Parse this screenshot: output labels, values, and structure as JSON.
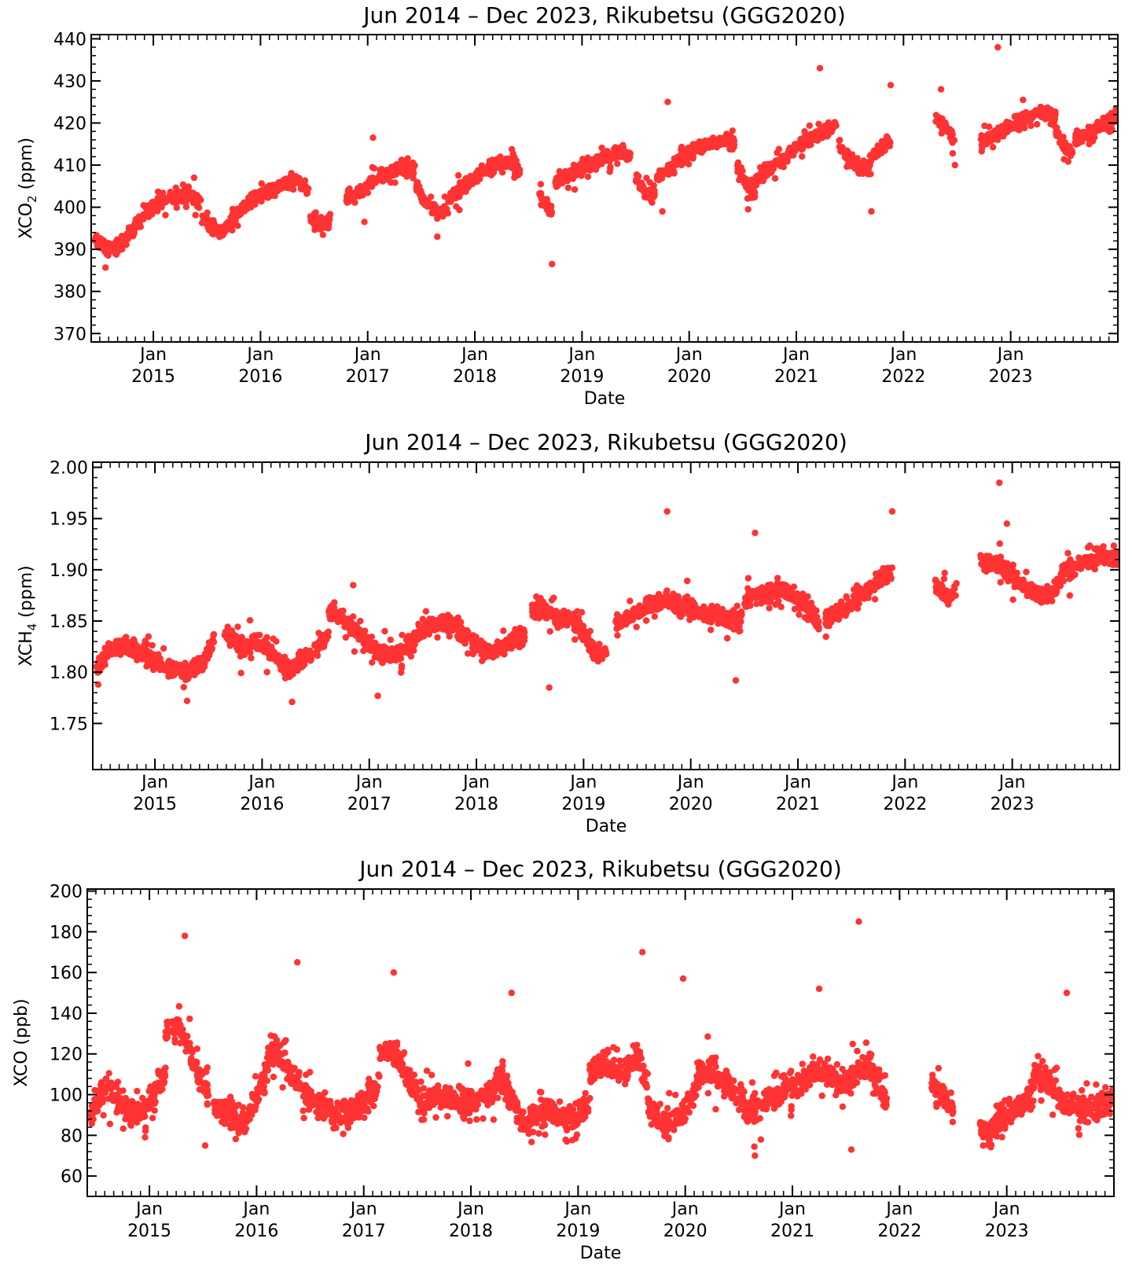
{
  "colors": {
    "points": "#ff3333",
    "axes": "#000000"
  },
  "chart_data": [
    {
      "type": "scatter",
      "title": "Jun 2014 – Dec 2023, Rikubetsu    (GGG2020)",
      "ylabel_main": "XCO",
      "ylabel_sub": "2",
      "ylabel_unit": " (ppm)",
      "xlabel": "Date",
      "xlim": [
        2014.42,
        2024.0
      ],
      "ylim": [
        368,
        441
      ],
      "yticks": [
        370,
        380,
        390,
        400,
        410,
        420,
        430,
        440
      ],
      "xtick_month": "Jan",
      "xticks": [
        2015,
        2016,
        2017,
        2018,
        2019,
        2020,
        2021,
        2022,
        2023
      ],
      "scatter": 2.2,
      "outliers": [
        [
          2015.38,
          407.0
        ],
        [
          2016.97,
          396.5
        ],
        [
          2017.65,
          393.0
        ],
        [
          2018.72,
          386.5
        ],
        [
          2019.8,
          425.0
        ],
        [
          2020.55,
          399.5
        ],
        [
          2021.22,
          433.0
        ],
        [
          2021.88,
          429.0
        ],
        [
          2021.7,
          399.0
        ],
        [
          2022.35,
          428.0
        ],
        [
          2022.88,
          438.0
        ],
        [
          2022.48,
          410.0
        ],
        [
          2019.75,
          399.0
        ],
        [
          2017.05,
          416.5
        ]
      ],
      "segments": [
        {
          "x": [
            2014.45,
            2014.55,
            2014.65,
            2014.75
          ],
          "y": [
            393,
            390,
            390.5,
            392
          ]
        },
        {
          "x": [
            2014.75,
            2014.9,
            2015.05,
            2015.2,
            2015.35,
            2015.45
          ],
          "y": [
            393,
            398,
            401,
            402.5,
            403,
            401
          ]
        },
        {
          "x": [
            2015.45,
            2015.55,
            2015.65
          ],
          "y": [
            398,
            395,
            394
          ]
        },
        {
          "x": [
            2015.65,
            2015.8,
            2015.95,
            2016.1,
            2016.25,
            2016.35,
            2016.45
          ],
          "y": [
            394,
            399,
            402,
            404,
            405.5,
            406.5,
            404
          ]
        },
        {
          "x": [
            2016.45,
            2016.55,
            2016.65
          ],
          "y": [
            398,
            396,
            397
          ]
        },
        {
          "x": [
            2016.8,
            2016.95,
            2017.1,
            2017.25,
            2017.35,
            2017.45
          ],
          "y": [
            402,
            404,
            407,
            409,
            410,
            409
          ]
        },
        {
          "x": [
            2017.45,
            2017.55,
            2017.65,
            2017.75
          ],
          "y": [
            405,
            401,
            398.5,
            400
          ]
        },
        {
          "x": [
            2017.75,
            2017.9,
            2018.05,
            2018.2,
            2018.35,
            2018.42
          ],
          "y": [
            402,
            405,
            408,
            410,
            411,
            408
          ]
        },
        {
          "x": [
            2018.6,
            2018.68,
            2018.72
          ],
          "y": [
            403,
            400,
            399
          ]
        },
        {
          "x": [
            2018.75,
            2018.9,
            2019.05,
            2019.2,
            2019.35,
            2019.45
          ],
          "y": [
            406,
            408,
            410,
            411.5,
            413,
            412
          ]
        },
        {
          "x": [
            2019.5,
            2019.6,
            2019.68
          ],
          "y": [
            407,
            403,
            403
          ]
        },
        {
          "x": [
            2019.7,
            2019.85,
            2020.0,
            2020.15,
            2020.3,
            2020.42
          ],
          "y": [
            407,
            410,
            413,
            415,
            416,
            415
          ]
        },
        {
          "x": [
            2020.45,
            2020.55,
            2020.62
          ],
          "y": [
            410,
            404,
            404
          ]
        },
        {
          "x": [
            2020.62,
            2020.8,
            2020.95,
            2021.1,
            2021.25,
            2021.38
          ],
          "y": [
            406,
            410,
            413,
            416,
            418,
            419
          ]
        },
        {
          "x": [
            2021.4,
            2021.5,
            2021.6,
            2021.7
          ],
          "y": [
            415,
            411,
            409,
            410
          ]
        },
        {
          "x": [
            2021.7,
            2021.8,
            2021.88
          ],
          "y": [
            412,
            414,
            416
          ]
        },
        {
          "x": [
            2022.3,
            2022.4,
            2022.48
          ],
          "y": [
            421,
            419,
            416
          ]
        },
        {
          "x": [
            2022.72,
            2022.85,
            2023.0,
            2023.15,
            2023.3,
            2023.42
          ],
          "y": [
            415,
            417,
            419.5,
            421,
            423,
            421
          ]
        },
        {
          "x": [
            2023.42,
            2023.5,
            2023.58
          ],
          "y": [
            418,
            414,
            413
          ]
        },
        {
          "x": [
            2023.6,
            2023.75,
            2023.9,
            2024.0
          ],
          "y": [
            416,
            418,
            420,
            422
          ]
        }
      ]
    },
    {
      "type": "scatter",
      "title": "Jun 2014 – Dec 2023, Rikubetsu    (GGG2020)",
      "ylabel_main": "XCH",
      "ylabel_sub": "4",
      "ylabel_unit": " (ppm)",
      "xlabel": "Date",
      "xlim": [
        2014.42,
        2024.0
      ],
      "ylim": [
        1.705,
        2.005
      ],
      "yticks": [
        1.75,
        1.8,
        1.85,
        1.9,
        1.95,
        2.0
      ],
      "ytick_decimals": 2,
      "xtick_month": "Jan",
      "xticks": [
        2015,
        2016,
        2017,
        2018,
        2019,
        2020,
        2021,
        2022,
        2023
      ],
      "scatter": 0.012,
      "outliers": [
        [
          2019.78,
          1.957
        ],
        [
          2021.88,
          1.957
        ],
        [
          2022.88,
          1.985
        ],
        [
          2022.95,
          1.945
        ],
        [
          2018.68,
          1.785
        ],
        [
          2020.42,
          1.792
        ],
        [
          2017.08,
          1.777
        ],
        [
          2015.3,
          1.772
        ],
        [
          2016.28,
          1.771
        ],
        [
          2020.6,
          1.936
        ],
        [
          2016.85,
          1.885
        ]
      ],
      "segments": [
        {
          "x": [
            2014.45,
            2014.55,
            2014.7,
            2014.85,
            2015.0,
            2015.15,
            2015.3,
            2015.45,
            2015.55
          ],
          "y": [
            1.8,
            1.82,
            1.825,
            1.82,
            1.81,
            1.805,
            1.8,
            1.81,
            1.83
          ]
        },
        {
          "x": [
            2015.65,
            2015.8,
            2015.95,
            2016.1,
            2016.25,
            2016.35,
            2016.5,
            2016.62
          ],
          "y": [
            1.84,
            1.825,
            1.83,
            1.82,
            1.8,
            1.81,
            1.825,
            1.835
          ]
        },
        {
          "x": [
            2016.62,
            2016.72,
            2016.85,
            2016.95,
            2017.1,
            2017.25,
            2017.4,
            2017.55
          ],
          "y": [
            1.86,
            1.855,
            1.845,
            1.83,
            1.82,
            1.815,
            1.83,
            1.845
          ]
        },
        {
          "x": [
            2017.55,
            2017.7,
            2017.85,
            2018.0,
            2018.15,
            2018.3,
            2018.45
          ],
          "y": [
            1.845,
            1.85,
            1.84,
            1.825,
            1.82,
            1.83,
            1.835
          ]
        },
        {
          "x": [
            2018.52,
            2018.6,
            2018.75,
            2018.9,
            2019.0,
            2019.1,
            2019.22
          ],
          "y": [
            1.86,
            1.86,
            1.855,
            1.85,
            1.84,
            1.82,
            1.815
          ]
        },
        {
          "x": [
            2019.3,
            2019.45,
            2019.6,
            2019.75,
            2019.9,
            2020.05,
            2020.2,
            2020.35,
            2020.48
          ],
          "y": [
            1.845,
            1.855,
            1.865,
            1.87,
            1.865,
            1.86,
            1.855,
            1.855,
            1.85
          ]
        },
        {
          "x": [
            2020.5,
            2020.65,
            2020.8,
            2020.95,
            2021.1,
            2021.2
          ],
          "y": [
            1.87,
            1.875,
            1.88,
            1.875,
            1.865,
            1.845
          ]
        },
        {
          "x": [
            2021.25,
            2021.4,
            2021.55,
            2021.7,
            2021.8,
            2021.88
          ],
          "y": [
            1.85,
            1.86,
            1.87,
            1.885,
            1.895,
            1.895
          ]
        },
        {
          "x": [
            2022.28,
            2022.38,
            2022.48
          ],
          "y": [
            1.885,
            1.875,
            1.88
          ]
        },
        {
          "x": [
            2022.7,
            2022.85,
            2023.0,
            2023.15,
            2023.3,
            2023.45
          ],
          "y": [
            1.91,
            1.905,
            1.895,
            1.88,
            1.875,
            1.885
          ]
        },
        {
          "x": [
            2023.45,
            2023.6,
            2023.75,
            2023.9,
            2024.0
          ],
          "y": [
            1.895,
            1.905,
            1.91,
            1.915,
            1.91
          ]
        }
      ]
    },
    {
      "type": "scatter",
      "title": "Jun 2014 – Dec 2023, Rikubetsu    (GGG2020)",
      "ylabel_main": "XCO (ppb)",
      "ylabel_sub": "",
      "ylabel_unit": "",
      "xlabel": "Date",
      "xlim": [
        2014.42,
        2024.0
      ],
      "ylim": [
        50,
        201
      ],
      "yticks": [
        60,
        80,
        100,
        120,
        140,
        160,
        180,
        200
      ],
      "xtick_month": "Jan",
      "xticks": [
        2015,
        2016,
        2017,
        2018,
        2019,
        2020,
        2021,
        2022,
        2023
      ],
      "scatter": 9,
      "outliers": [
        [
          2021.62,
          185
        ],
        [
          2015.33,
          178
        ],
        [
          2019.6,
          170
        ],
        [
          2016.38,
          165
        ],
        [
          2017.28,
          160
        ],
        [
          2019.98,
          157
        ],
        [
          2021.25,
          152
        ],
        [
          2018.38,
          150
        ],
        [
          2023.56,
          150
        ],
        [
          2015.52,
          75
        ],
        [
          2020.65,
          70
        ],
        [
          2021.55,
          73
        ],
        [
          2022.78,
          75
        ]
      ],
      "segments": [
        {
          "x": [
            2014.45,
            2014.6,
            2014.75,
            2014.9,
            2015.05,
            2015.15
          ],
          "y": [
            90,
            105,
            95,
            90,
            100,
            110
          ]
        },
        {
          "x": [
            2015.15,
            2015.25,
            2015.35,
            2015.45,
            2015.55
          ],
          "y": [
            130,
            135,
            125,
            110,
            100
          ]
        },
        {
          "x": [
            2015.6,
            2015.75,
            2015.9,
            2016.0,
            2016.1
          ],
          "y": [
            95,
            90,
            88,
            100,
            110
          ]
        },
        {
          "x": [
            2016.1,
            2016.2,
            2016.3,
            2016.45,
            2016.6,
            2016.7
          ],
          "y": [
            118,
            120,
            112,
            100,
            95,
            92
          ]
        },
        {
          "x": [
            2016.7,
            2016.85,
            2017.0,
            2017.15
          ],
          "y": [
            88,
            92,
            95,
            105
          ]
        },
        {
          "x": [
            2017.15,
            2017.25,
            2017.35,
            2017.45,
            2017.55
          ],
          "y": [
            120,
            122,
            115,
            105,
            95
          ]
        },
        {
          "x": [
            2017.55,
            2017.7,
            2017.85,
            2018.0,
            2018.15,
            2018.3
          ],
          "y": [
            95,
            100,
            98,
            95,
            100,
            110
          ]
        },
        {
          "x": [
            2018.3,
            2018.4,
            2018.5,
            2018.65,
            2018.8,
            2018.95,
            2019.1
          ],
          "y": [
            105,
            95,
            85,
            92,
            90,
            88,
            95
          ]
        },
        {
          "x": [
            2019.1,
            2019.25,
            2019.4,
            2019.55,
            2019.65
          ],
          "y": [
            110,
            115,
            110,
            120,
            105
          ]
        },
        {
          "x": [
            2019.65,
            2019.75,
            2019.85,
            2019.95,
            2020.1
          ],
          "y": [
            95,
            88,
            85,
            90,
            100
          ]
        },
        {
          "x": [
            2020.1,
            2020.25,
            2020.4,
            2020.55
          ],
          "y": [
            110,
            112,
            105,
            98
          ]
        },
        {
          "x": [
            2020.55,
            2020.7,
            2020.85,
            2021.0,
            2021.15
          ],
          "y": [
            92,
            95,
            100,
            105,
            108
          ]
        },
        {
          "x": [
            2021.15,
            2021.3,
            2021.45,
            2021.6,
            2021.72,
            2021.88
          ],
          "y": [
            110,
            112,
            105,
            110,
            115,
            95
          ]
        },
        {
          "x": [
            2022.3,
            2022.4,
            2022.5
          ],
          "y": [
            105,
            100,
            92
          ]
        },
        {
          "x": [
            2022.75,
            2022.85,
            2022.95,
            2023.1,
            2023.25
          ],
          "y": [
            85,
            80,
            90,
            95,
            100
          ]
        },
        {
          "x": [
            2023.25,
            2023.4,
            2023.55,
            2023.7,
            2023.85,
            2024.0
          ],
          "y": [
            110,
            105,
            95,
            92,
            95,
            98
          ]
        }
      ]
    }
  ]
}
